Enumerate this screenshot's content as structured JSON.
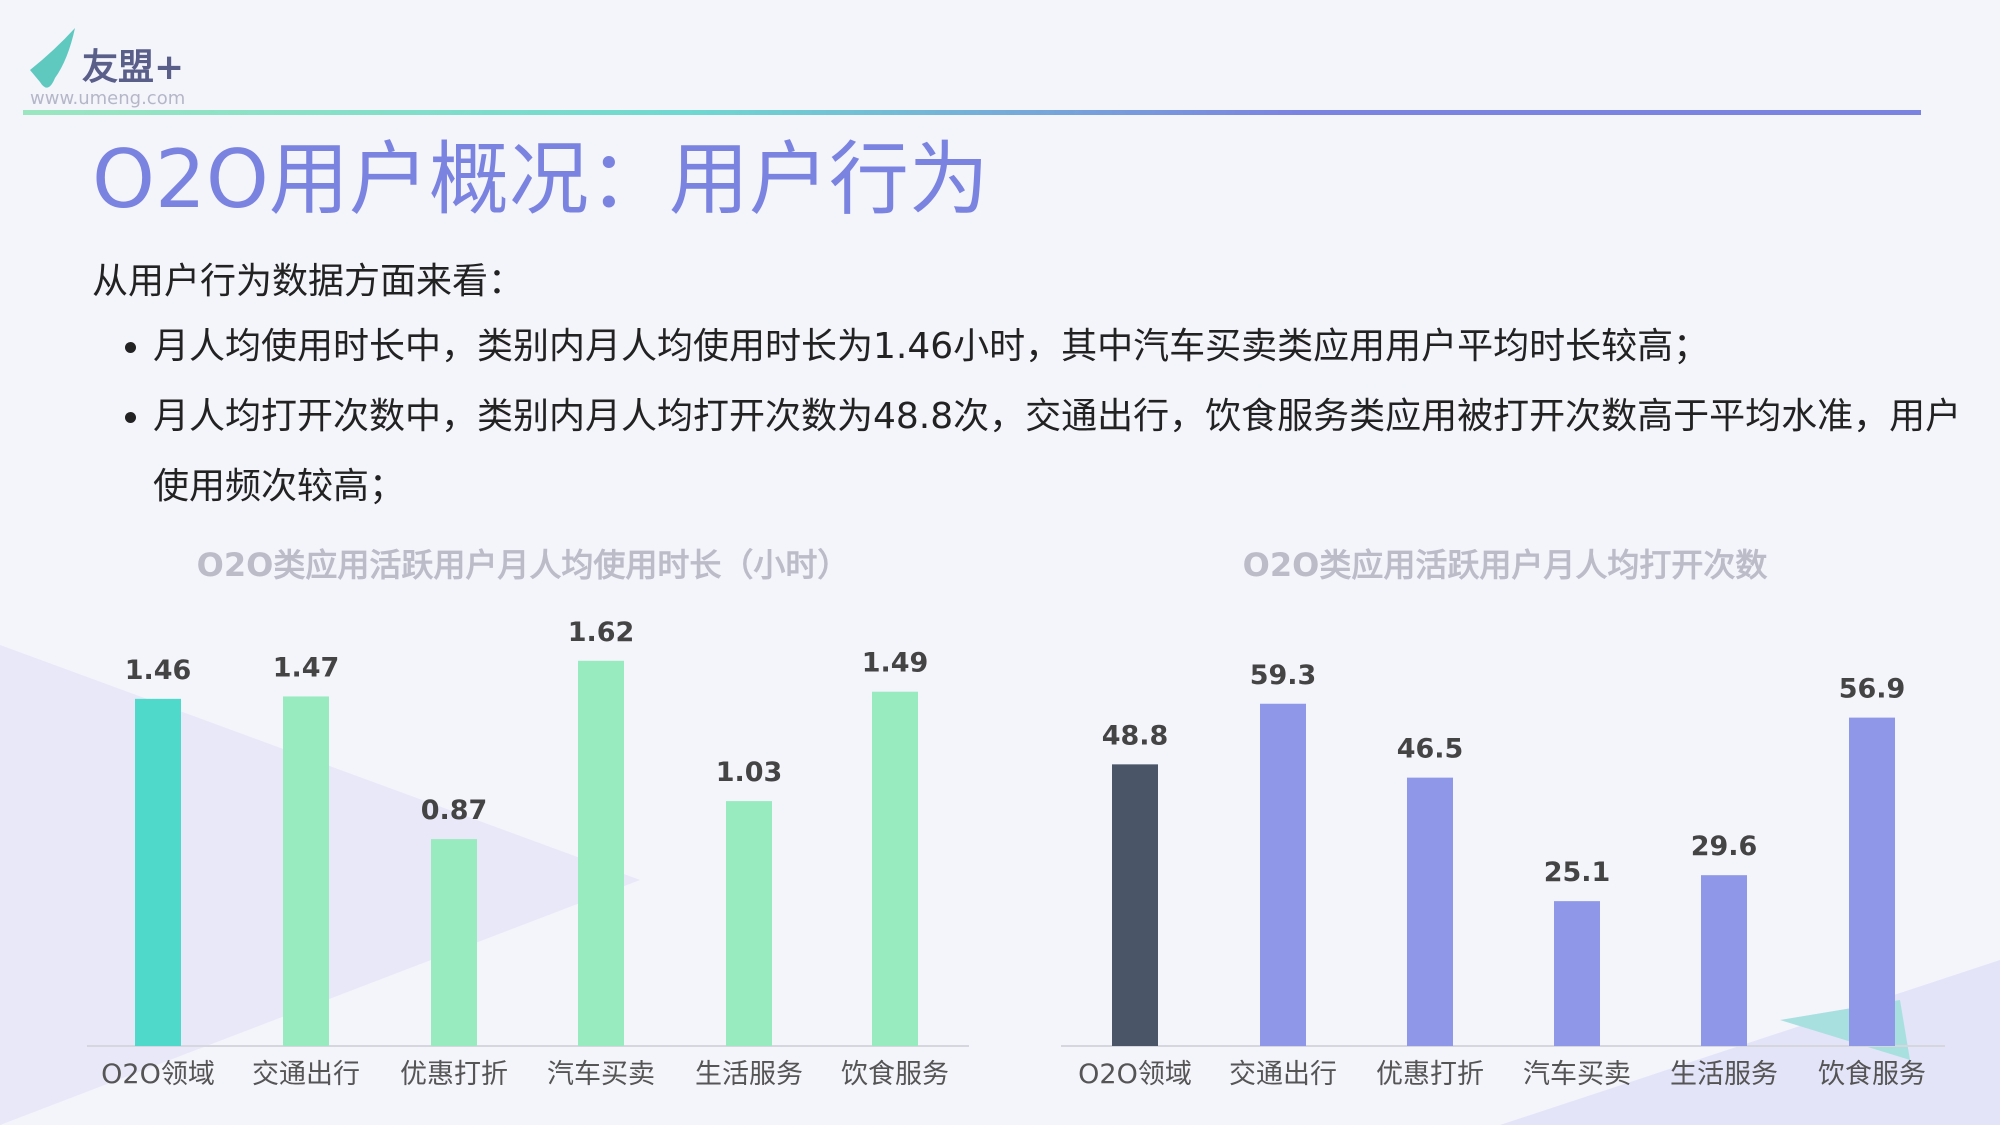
{
  "header": {
    "logo": "友盟+",
    "url": "www.umeng.com"
  },
  "title": "O2O用户概况：用户行为",
  "intro": "从用户行为数据方面来看：",
  "bullets": [
    "月人均使用时长中，类别内月人均使用时长为1.46小时，其中汽车买卖类应用用户平均时长较高；",
    "月人均打开次数中，类别内月人均打开次数为48.8次，交通出行，饮食服务类应用被打开次数高于平均水准，用户使用频次较高；"
  ],
  "chart_data": [
    {
      "type": "bar",
      "title": "O2O类应用活跃用户月人均使用时长（小时）",
      "categories": [
        "O2O领域",
        "交通出行",
        "优惠打折",
        "汽车买卖",
        "生活服务",
        "饮食服务"
      ],
      "values": [
        1.46,
        1.47,
        0.87,
        1.62,
        1.03,
        1.49
      ],
      "colors": [
        "#4fd9cb",
        "#98ebbf",
        "#98ebbf",
        "#98ebbf",
        "#98ebbf",
        "#98ebbf"
      ],
      "ylim": [
        0,
        1.8
      ]
    },
    {
      "type": "bar",
      "title": "O2O类应用活跃用户月人均打开次数",
      "categories": [
        "O2O领域",
        "交通出行",
        "优惠打折",
        "汽车买卖",
        "生活服务",
        "饮食服务"
      ],
      "values": [
        48.8,
        59.3,
        46.5,
        25.1,
        29.6,
        56.9
      ],
      "colors": [
        "#4a5568",
        "#8f98e8",
        "#8f98e8",
        "#8f98e8",
        "#8f98e8",
        "#8f98e8"
      ],
      "ylim": [
        0,
        70
      ]
    }
  ]
}
